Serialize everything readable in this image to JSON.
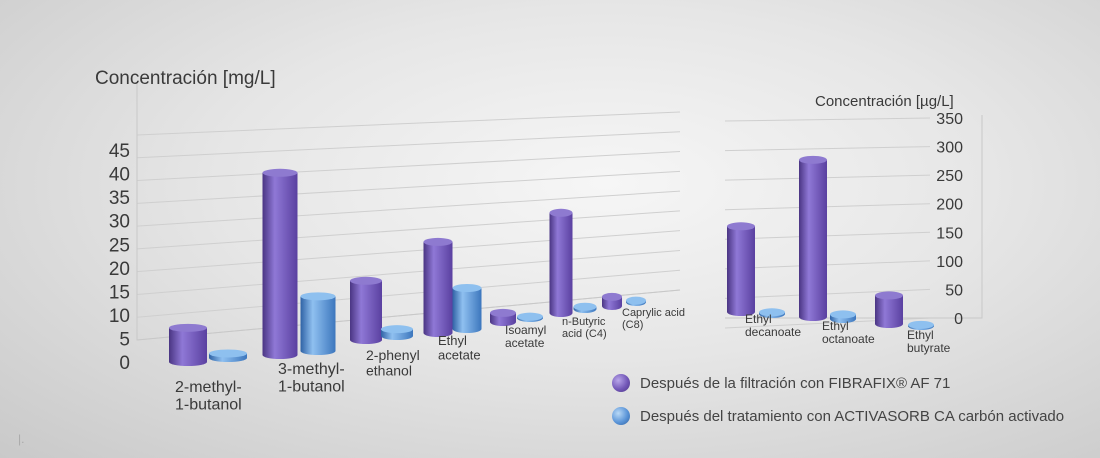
{
  "chart_data": [
    {
      "type": "bar",
      "ylabel": "Concentración [mg/L]",
      "yticks": [
        "45",
        "40",
        "35",
        "30",
        "25",
        "20",
        "15",
        "10",
        "5",
        "0"
      ],
      "ylim": [
        0,
        45
      ],
      "categories": [
        "2-methyl-\n1-butanol",
        "3-methyl-\n1-butanol",
        "2-phenyl\nethanol",
        "Ethyl\nacetate",
        "Isoamyl\nacetate",
        "n-Butyric\nacid (C4)",
        "Caprylic acid\n(C8)"
      ],
      "series": [
        {
          "name": "Después de la filtración con FIBRAFIX® AF 71",
          "values": [
            7.5,
            40,
            13,
            20,
            2,
            22,
            2
          ]
        },
        {
          "name": "Después del tratamiento con ACTIVASORB CA carbón activado",
          "values": [
            1,
            12,
            1.5,
            9,
            0.3,
            0.5,
            0.3
          ]
        }
      ]
    },
    {
      "type": "bar",
      "ylabel": "Concentración [µg/L]",
      "yticks": [
        "350",
        "300",
        "250",
        "200",
        "150",
        "100",
        "50",
        "0"
      ],
      "ylim": [
        0,
        350
      ],
      "categories": [
        "Ethyl\ndecanoate",
        "Ethyl\noctanoate",
        "Ethyl\nbutyrate"
      ],
      "series": [
        {
          "name": "Después de la filtración con FIBRAFIX® AF 71",
          "values": [
            150,
            275,
            50
          ]
        },
        {
          "name": "Después del tratamiento con ACTIVASORB CA carbón activado",
          "values": [
            3,
            8,
            2
          ]
        }
      ]
    }
  ],
  "legend": {
    "item1": "Después de la filtración con FIBRAFIX® AF 71",
    "item2": "Después del tratamiento con ACTIVASORB CA carbón activado"
  },
  "colors": {
    "purple": "#6e55b3",
    "blue": "#5b95d8"
  },
  "corner_mark": "|."
}
